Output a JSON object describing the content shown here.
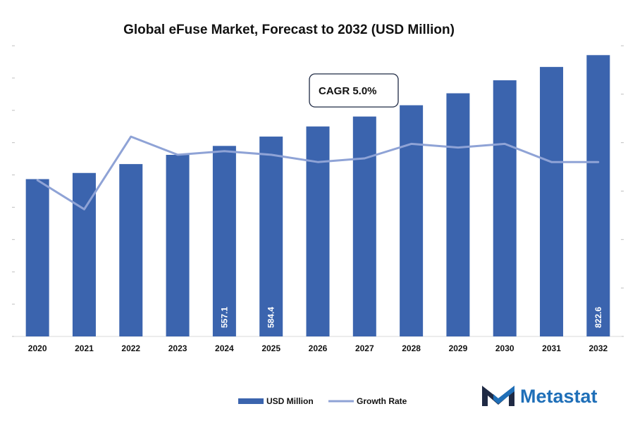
{
  "chart_data": {
    "type": "bar",
    "title": "Global eFuse Market, Forecast to 2032 (USD Million)",
    "categories": [
      "2020",
      "2021",
      "2022",
      "2023",
      "2024",
      "2025",
      "2026",
      "2027",
      "2028",
      "2029",
      "2030",
      "2031",
      "2032"
    ],
    "series": [
      {
        "name": "USD Million",
        "type": "bar",
        "axis": "left",
        "color": "#3b64ae",
        "values": [
          460,
          478,
          504,
          531,
          557.1,
          584.4,
          614,
          643,
          676,
          711,
          749,
          788,
          822.6
        ],
        "labels": [
          "",
          "",
          "",
          "",
          "557.1",
          "584.4",
          "",
          "",
          "",
          "",
          "",
          "",
          "822.6"
        ]
      },
      {
        "name": "Growth Rate",
        "type": "line",
        "axis": "right",
        "color": "#8fa3d6",
        "values": [
          4.3,
          3.5,
          5.5,
          5.0,
          5.1,
          5.0,
          4.8,
          4.9,
          5.3,
          5.2,
          5.3,
          4.8,
          4.8
        ]
      }
    ],
    "ylim_left": [
      0,
      850
    ],
    "ylim_right": [
      0,
      8
    ],
    "grid": false,
    "legend": "bottom-center",
    "annotation": "CAGR 5.0%"
  },
  "brand": {
    "name": "Metastat",
    "logo_icon": "metastat-m-logo-icon",
    "colors": {
      "dark": "#1f2a44",
      "blue": "#1f6fb8"
    }
  }
}
